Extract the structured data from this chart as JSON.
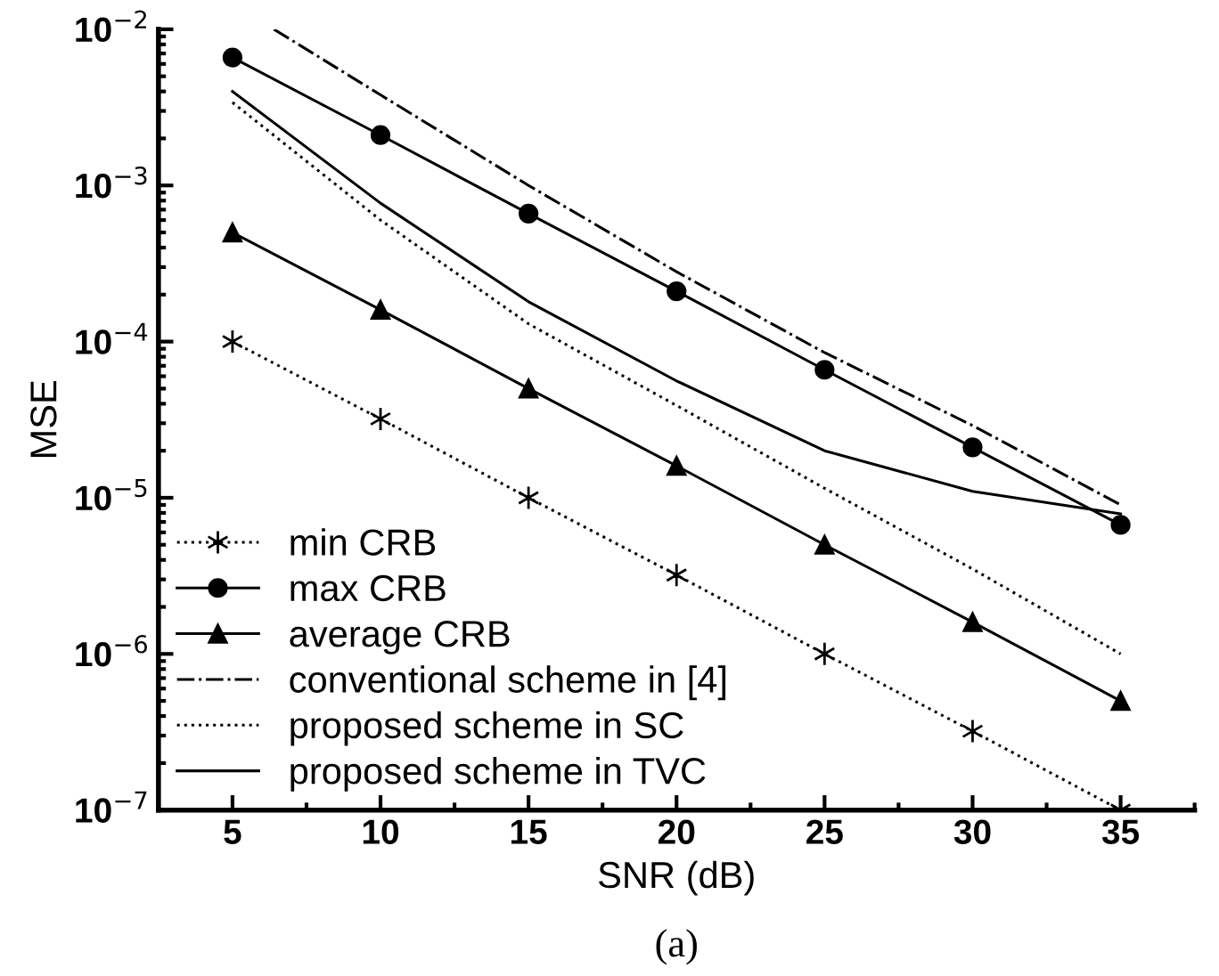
{
  "chart_data": {
    "type": "line",
    "xlabel": "SNR (dB)",
    "ylabel": "MSE",
    "annotations": [
      "(a)"
    ],
    "x": [
      5,
      10,
      15,
      20,
      25,
      30,
      35
    ],
    "series": [
      {
        "name": "min CRB",
        "color": "#000000",
        "marker": "cross",
        "line_style": "dotted",
        "values": [
          0.0001,
          3.2e-05,
          1e-05,
          3.2e-06,
          1e-06,
          3.2e-07,
          1e-07
        ]
      },
      {
        "name": "max CRB",
        "color": "#000000",
        "marker": "circle",
        "line_style": "solid",
        "values": [
          0.0066,
          0.0021,
          0.00066,
          0.00021,
          6.6e-05,
          2.1e-05,
          6.7e-06
        ]
      },
      {
        "name": "average CRB",
        "color": "#000000",
        "marker": "triangle",
        "line_style": "solid",
        "values": [
          0.0005,
          0.00016,
          5e-05,
          1.6e-05,
          5e-06,
          1.6e-06,
          5e-07
        ]
      },
      {
        "name": "conventional scheme in [4]",
        "color": "#000000",
        "marker": "none",
        "line_style": "dashdot",
        "x": [
          6.4,
          10,
          15,
          20,
          25,
          30,
          35
        ],
        "values": [
          0.01,
          0.0038,
          0.001,
          0.00028,
          8.5e-05,
          2.9e-05,
          9e-06
        ]
      },
      {
        "name": "proposed scheme in SC",
        "color": "#000000",
        "marker": "none",
        "line_style": "dotted",
        "values": [
          0.0034,
          0.0006,
          0.00013,
          3.9e-05,
          1.15e-05,
          3.5e-06,
          1e-06
        ]
      },
      {
        "name": "proposed scheme in TVC",
        "color": "#000000",
        "marker": "none",
        "line_style": "solid",
        "values": [
          0.004,
          0.00077,
          0.00018,
          5.6e-05,
          2e-05,
          1.1e-05,
          7.9e-06
        ]
      }
    ],
    "log": "y",
    "xlim": [
      2.5,
      37.5
    ],
    "xticks": [
      5,
      10,
      15,
      20,
      25,
      30,
      35
    ],
    "ylim": [
      1e-07,
      0.01
    ],
    "yticks": [
      {
        "value": 1e-07,
        "label": "10$^{−7}$"
      },
      {
        "value": 1e-06,
        "label": "10$^{−6}$"
      },
      {
        "value": 1e-05,
        "label": "10$^{−5}$"
      },
      {
        "value": 0.0001,
        "label": "10$^{−4}$"
      },
      {
        "value": 0.001,
        "label": "10$^{−3}$"
      },
      {
        "value": 0.01,
        "label": "10$^{−2}$"
      }
    ],
    "grid": false,
    "legend": "bottom left"
  }
}
